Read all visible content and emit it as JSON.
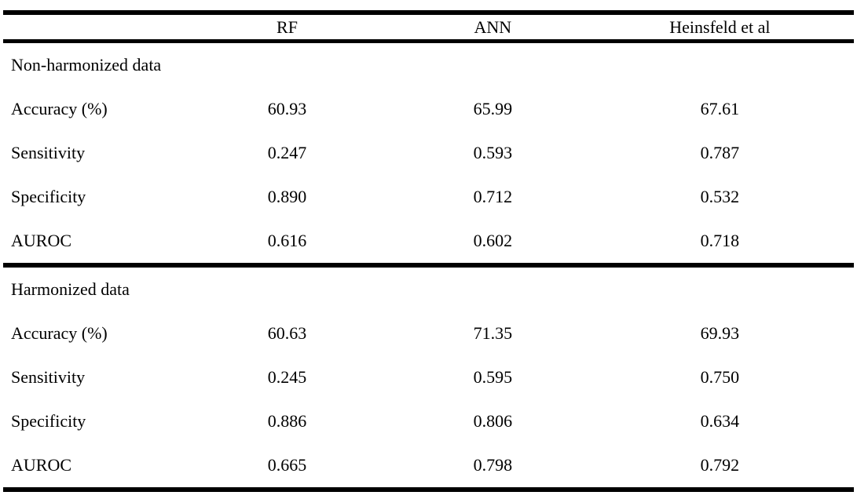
{
  "colors": {
    "text": "#000000",
    "rule": "#000000",
    "background": "#ffffff"
  },
  "table": {
    "columns": [
      "",
      "RF",
      "ANN",
      "Heinsfeld et al"
    ],
    "sections": [
      {
        "title": "Non-harmonized data",
        "rows": [
          {
            "label": "Accuracy (%)",
            "values": [
              "60.93",
              "65.99",
              "67.61"
            ]
          },
          {
            "label": "Sensitivity",
            "values": [
              "0.247",
              "0.593",
              "0.787"
            ]
          },
          {
            "label": "Specificity",
            "values": [
              "0.890",
              "0.712",
              "0.532"
            ]
          },
          {
            "label": "AUROC",
            "values": [
              "0.616",
              "0.602",
              "0.718"
            ]
          }
        ]
      },
      {
        "title": "Harmonized data",
        "rows": [
          {
            "label": "Accuracy (%)",
            "values": [
              "60.63",
              "71.35",
              "69.93"
            ]
          },
          {
            "label": "Sensitivity",
            "values": [
              "0.245",
              "0.595",
              "0.750"
            ]
          },
          {
            "label": "Specificity",
            "values": [
              "0.886",
              "0.806",
              "0.634"
            ]
          },
          {
            "label": "AUROC",
            "values": [
              "0.665",
              "0.798",
              "0.792"
            ]
          }
        ]
      }
    ]
  }
}
